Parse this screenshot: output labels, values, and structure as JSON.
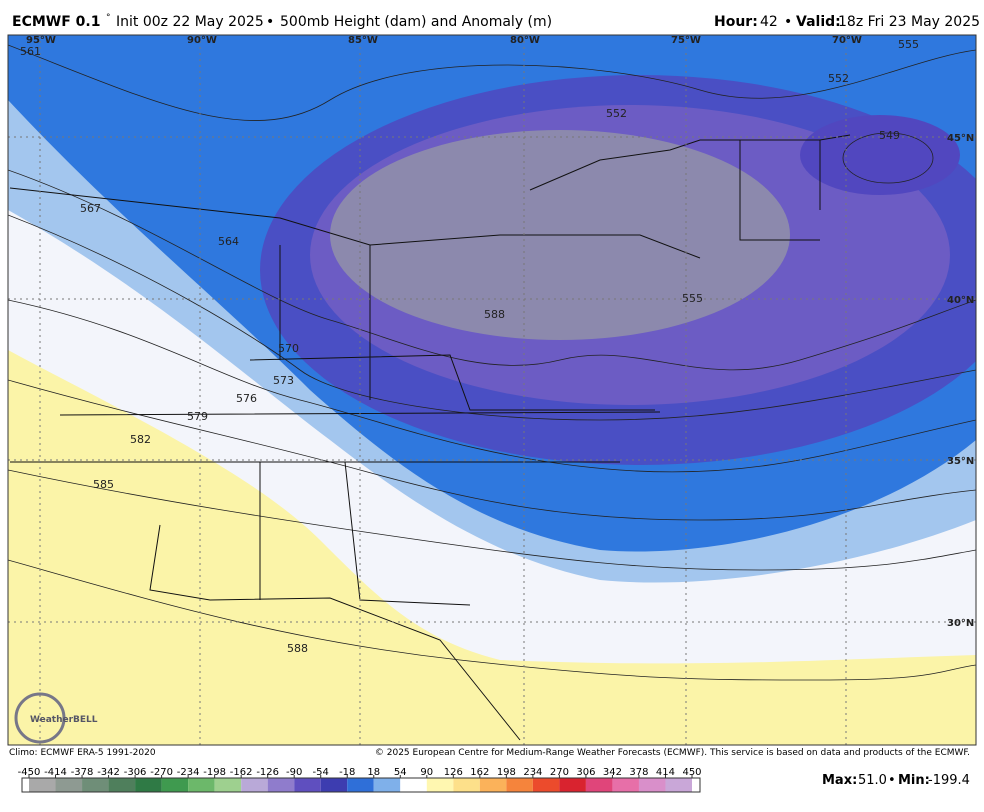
{
  "header": {
    "model": "ECMWF 0.1",
    "degree": "°",
    "init": "Init 00z 22 May 2025",
    "sep": "•",
    "product": "500mb Height (dam) and Anomaly (m)",
    "hour_label": "Hour:",
    "hour": "42",
    "valid_label": "Valid:",
    "valid": "18z Fri 23 May 2025"
  },
  "map": {
    "longitudes": [
      "95°W",
      "90°W",
      "85°W",
      "80°W",
      "75°W",
      "70°W"
    ],
    "latitudes": [
      "45°N",
      "40°N",
      "35°N",
      "30°N"
    ],
    "contour_labels": [
      "561",
      "567",
      "564",
      "570",
      "573",
      "576",
      "579",
      "582",
      "585",
      "588",
      "588",
      "552",
      "552",
      "549",
      "555",
      "555"
    ],
    "logo": "WeatherBELL"
  },
  "footer": {
    "climo": "Climo: ECMWF ERA-5 1991-2020",
    "copyright": "© 2025 European Centre for Medium-Range Weather Forecasts (ECMWF). This service is based on data and products of the ECMWF.",
    "max_label": "Max:",
    "max": "51.0",
    "min_label": "Min:",
    "min": "-199.4",
    "sep": "•"
  },
  "colorbar": {
    "ticks": [
      -450,
      -414,
      -378,
      -342,
      -306,
      -270,
      -234,
      -198,
      -162,
      -126,
      -90,
      -54,
      -18,
      18,
      54,
      90,
      126,
      162,
      198,
      234,
      270,
      306,
      342,
      378,
      414,
      450
    ],
    "colors": [
      "#a9a9a9",
      "#8e9a92",
      "#6f8e78",
      "#4f7f5c",
      "#2f7a45",
      "#3f9a4f",
      "#6cb86a",
      "#9ed08f",
      "#b9a9d8",
      "#8f7ccc",
      "#5f4fbf",
      "#3d3db0",
      "#2f6fd8",
      "#7fb0ea",
      "#ffffff",
      "#fff7b0",
      "#fde08a",
      "#fbb25a",
      "#f5843c",
      "#ec4b2c",
      "#d9232f",
      "#e0457a",
      "#e76fa8",
      "#d98fca",
      "#c9a7d8"
    ]
  }
}
